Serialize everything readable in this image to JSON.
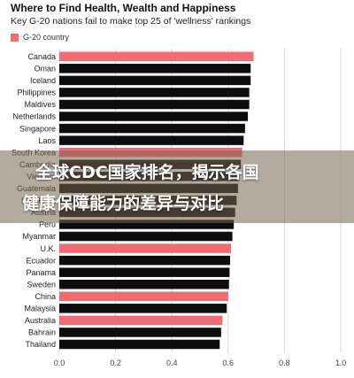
{
  "header": {
    "title": "Where to Find Health, Wealth and Happiness",
    "subtitle": "Key G-20 nations fail to make top 25 of 'wellness' rankings",
    "legend_label": "G-20 country"
  },
  "colors": {
    "g20": "#f26b72",
    "other": "#0d0d0d",
    "grid": "#d9d9d9"
  },
  "overlay": {
    "line1": "全球CDC国家排名，揭示各国",
    "line2": "健康保障能力的差异与对比"
  },
  "chart_data": {
    "type": "bar",
    "orientation": "horizontal",
    "title": "Where to Find Health, Wealth and Happiness",
    "subtitle": "Key G-20 nations fail to make top 25 of 'wellness' rankings",
    "xlim": [
      0,
      1.0
    ],
    "xticks": [
      "0.0",
      "0.2",
      "0.4",
      "0.6",
      "0.8",
      "1.0"
    ],
    "grid": true,
    "legend": {
      "position": "top-left",
      "entries": [
        "G-20 country"
      ]
    },
    "categories": [
      "Canada",
      "Oman",
      "Iceland",
      "Philippines",
      "Maldives",
      "Netherlands",
      "Singapore",
      "Laos",
      "South Korea",
      "Cambodia",
      "Vietnam",
      "Guatemala",
      "Honduras",
      "Austria",
      "Peru",
      "Myanmar",
      "U.K.",
      "Ecuador",
      "Panama",
      "Sweden",
      "China",
      "Malaysia",
      "Australia",
      "Bahrain",
      "Thailand"
    ],
    "values": [
      0.69,
      0.68,
      0.68,
      0.675,
      0.675,
      0.67,
      0.66,
      0.655,
      0.65,
      0.645,
      0.64,
      0.635,
      0.63,
      0.625,
      0.62,
      0.615,
      0.61,
      0.607,
      0.605,
      0.603,
      0.6,
      0.595,
      0.58,
      0.575,
      0.57
    ],
    "g20": [
      true,
      false,
      false,
      false,
      false,
      false,
      false,
      false,
      true,
      false,
      false,
      false,
      false,
      false,
      false,
      false,
      true,
      false,
      false,
      false,
      true,
      false,
      true,
      false,
      false
    ]
  }
}
